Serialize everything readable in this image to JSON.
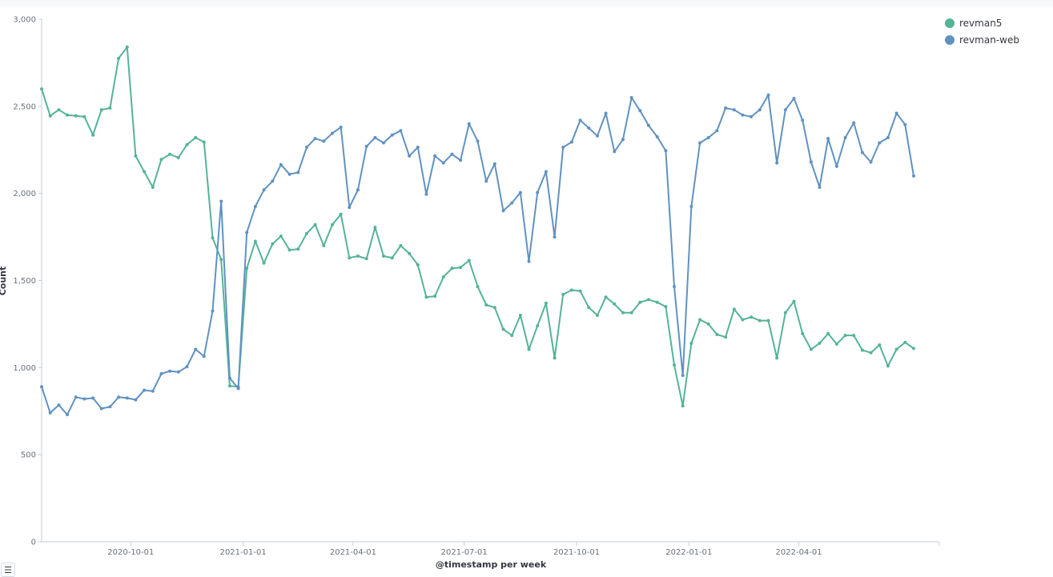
{
  "chart_data": {
    "type": "line",
    "xlabel": "@timestamp per week",
    "ylabel": "Count",
    "ylim": [
      0,
      3000
    ],
    "yticks": [
      0,
      500,
      1000,
      1500,
      2000,
      2500,
      3000
    ],
    "ytick_labels": [
      "0",
      "500",
      "1,000",
      "1,500",
      "2,000",
      "2,500",
      "3,000"
    ],
    "xticks": [
      "2020-10-01",
      "2021-01-01",
      "2021-04-01",
      "2021-07-01",
      "2021-10-01",
      "2022-01-01",
      "2022-04-01"
    ],
    "x_start": "2020-07-20",
    "x_end": "2022-07-25",
    "x_step_days": 7,
    "grid": false,
    "legend": "top-right",
    "series": [
      {
        "name": "revman5",
        "color": "#54b399",
        "values": [
          2600,
          2445,
          2480,
          2450,
          2445,
          2440,
          2335,
          2480,
          2490,
          2775,
          2840,
          2215,
          2125,
          2035,
          2195,
          2225,
          2205,
          2280,
          2320,
          2295,
          1745,
          1620,
          895,
          890,
          1570,
          1725,
          1600,
          1710,
          1755,
          1675,
          1680,
          1770,
          1820,
          1700,
          1820,
          1880,
          1630,
          1640,
          1625,
          1805,
          1640,
          1630,
          1700,
          1655,
          1590,
          1405,
          1410,
          1520,
          1570,
          1575,
          1615,
          1465,
          1360,
          1345,
          1220,
          1185,
          1300,
          1105,
          1240,
          1370,
          1055,
          1420,
          1445,
          1440,
          1345,
          1300,
          1405,
          1365,
          1315,
          1315,
          1375,
          1390,
          1375,
          1350,
          1015,
          780,
          1140,
          1275,
          1250,
          1190,
          1175,
          1335,
          1275,
          1290,
          1270,
          1270,
          1055,
          1315,
          1380,
          1195,
          1105,
          1140,
          1195,
          1135,
          1185,
          1185,
          1100,
          1085,
          1130,
          1010,
          1105,
          1145,
          1110
        ]
      },
      {
        "name": "revman-web",
        "color": "#6092c0",
        "values": [
          890,
          740,
          785,
          730,
          830,
          820,
          825,
          765,
          775,
          830,
          825,
          815,
          870,
          865,
          965,
          980,
          975,
          1005,
          1105,
          1065,
          1325,
          1955,
          940,
          880,
          1775,
          1925,
          2020,
          2070,
          2165,
          2110,
          2120,
          2265,
          2315,
          2300,
          2345,
          2380,
          1920,
          2020,
          2270,
          2320,
          2290,
          2335,
          2360,
          2215,
          2265,
          1995,
          2215,
          2175,
          2225,
          2190,
          2400,
          2300,
          2070,
          2170,
          1900,
          1945,
          2005,
          1610,
          2005,
          2125,
          1750,
          2265,
          2295,
          2420,
          2375,
          2330,
          2460,
          2240,
          2310,
          2550,
          2475,
          2390,
          2325,
          2245,
          1465,
          955,
          1925,
          2290,
          2320,
          2360,
          2490,
          2480,
          2450,
          2440,
          2480,
          2565,
          2175,
          2480,
          2545,
          2420,
          2180,
          2035,
          2315,
          2155,
          2320,
          2405,
          2235,
          2180,
          2290,
          2320,
          2460,
          2395,
          2100
        ]
      }
    ]
  }
}
